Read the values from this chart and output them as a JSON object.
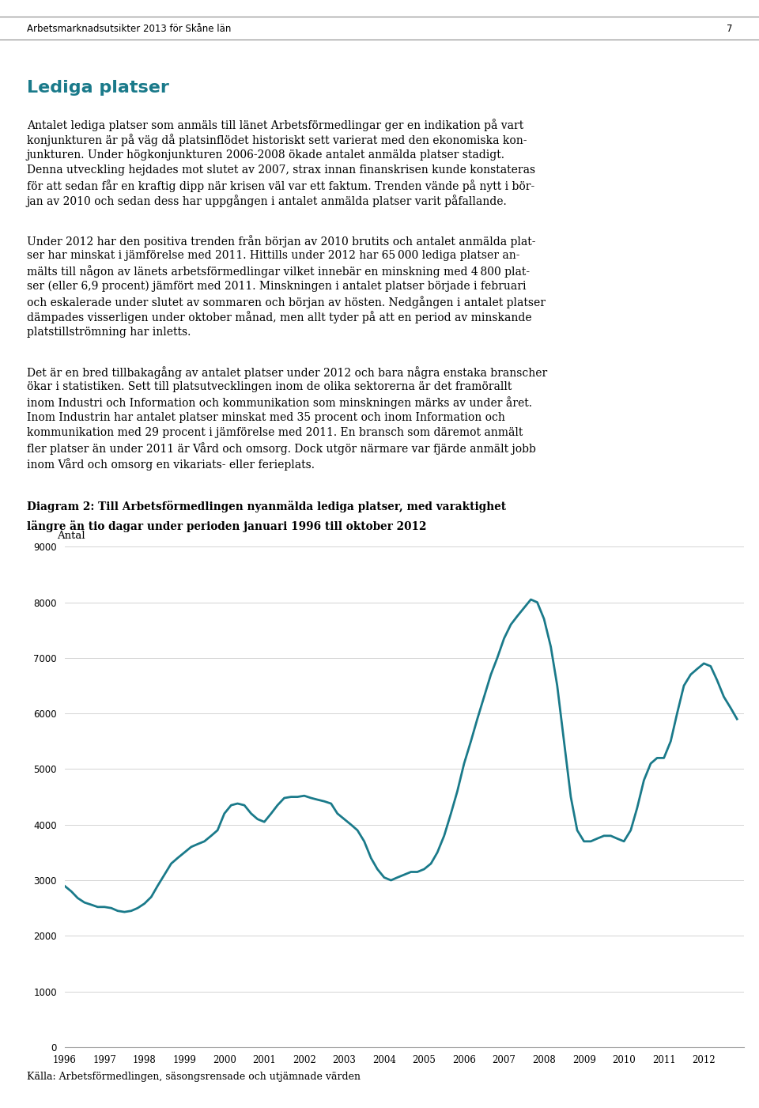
{
  "title_line1": "Diagram 2: Till Arbetsförmedlingen nyanmälda lediga platser, med varaktighet",
  "title_line2": "längre än tio dagar under perioden januari 1996 till oktober 2012",
  "ylabel": "Antal",
  "xlabel_source": "Källa: Arbetsförmedlingen, säsongsrensade och utjämnade värden",
  "page_header": "Arbetsmarknadsutsikter 2013 för Skåne län",
  "page_number": "7",
  "section_title": "Lediga platser",
  "para1": "Antalet lediga platser som anmäls till länet Arbetsförmedlingar ger en indikation på vart konjunkturen är på väg då platsinflödet historiskt sett varierat med den ekonomiska kon-junkturen. Under högkonjunkturen 2006-2008 ökade antalet anmälda platser stadigt. Denna utveckling hejdades mot slutet av 2007, strax innan finanskrisen kunde konstateras för att sedan får en kraftig dipp när krisen väl var ett faktum. Trenden vände på nytt i bör-jan av 2010 och sedan dess har uppgången i antalet anmälda platser varit påfallande.",
  "para2": "Under 2012 har den positiva trenden från början av 2010 brutits och antalet anmälda plat-ser har minskat i jämförelse med 2011. Hittills under 2012 har 65 000 lediga platser an-mälts till någon av länets arbetsförmedlingar vilket innebär en minskning med 4 800 plat-ser (eller 6,9 procent) jämfört med 2011. Minskningen i antalet platser började i februari och eskalerade under slutet av sommaren och början av hösten. Nedgången i antalet platser dämpades visserligen under oktober månad, men allt tyder på att en period av minskande platstillströmning har inletts.",
  "para3": "Det är en bred tillbakagång av antalet platser under 2012 och bara några enstaka branscher ökar i statistiken. Sett till platsutvecklingen inom de olika sektorerna är det framörallt inom Industri och Information och kommunikation som minskningen märks av under året. Inom Industrin har antalet platser minskat med 35 procent och inom Information och kommunikation med 29 procent i jämförelse med 2011. En bransch som däremot anmält fler platser än under 2011 är Vård och omsorg. Dock utgör närmare var fjärde anmält jobb inom Vård och omsorg en vikariats- eller ferieplats.",
  "line_color": "#1a7a8a",
  "line_width": 2.0,
  "ylim": [
    0,
    9000
  ],
  "yticks": [
    0,
    1000,
    2000,
    3000,
    4000,
    5000,
    6000,
    7000,
    8000,
    9000
  ],
  "x_labels": [
    "1996",
    "1997",
    "1998",
    "1999",
    "2000",
    "2001",
    "2002",
    "2003",
    "2004",
    "2005",
    "2006",
    "2007",
    "2008",
    "2009",
    "2010",
    "2011",
    "2012"
  ],
  "data_x": [
    1996.0,
    1996.17,
    1996.33,
    1996.5,
    1996.67,
    1996.83,
    1997.0,
    1997.17,
    1997.33,
    1997.5,
    1997.67,
    1997.83,
    1998.0,
    1998.17,
    1998.33,
    1998.5,
    1998.67,
    1998.83,
    1999.0,
    1999.17,
    1999.33,
    1999.5,
    1999.67,
    1999.83,
    2000.0,
    2000.17,
    2000.33,
    2000.5,
    2000.67,
    2000.83,
    2001.0,
    2001.17,
    2001.33,
    2001.5,
    2001.67,
    2001.83,
    2002.0,
    2002.17,
    2002.33,
    2002.5,
    2002.67,
    2002.83,
    2003.0,
    2003.17,
    2003.33,
    2003.5,
    2003.67,
    2003.83,
    2004.0,
    2004.17,
    2004.33,
    2004.5,
    2004.67,
    2004.83,
    2005.0,
    2005.17,
    2005.33,
    2005.5,
    2005.67,
    2005.83,
    2006.0,
    2006.17,
    2006.33,
    2006.5,
    2006.67,
    2006.83,
    2007.0,
    2007.17,
    2007.33,
    2007.5,
    2007.67,
    2007.83,
    2008.0,
    2008.17,
    2008.33,
    2008.5,
    2008.67,
    2008.83,
    2009.0,
    2009.17,
    2009.33,
    2009.5,
    2009.67,
    2009.83,
    2010.0,
    2010.17,
    2010.33,
    2010.5,
    2010.67,
    2010.83,
    2011.0,
    2011.17,
    2011.33,
    2011.5,
    2011.67,
    2011.83,
    2012.0,
    2012.17,
    2012.33,
    2012.5,
    2012.67,
    2012.83
  ],
  "data_y": [
    2900,
    2800,
    2680,
    2600,
    2560,
    2520,
    2520,
    2500,
    2450,
    2430,
    2450,
    2500,
    2580,
    2700,
    2900,
    3100,
    3300,
    3400,
    3500,
    3600,
    3650,
    3700,
    3800,
    3900,
    4200,
    4350,
    4380,
    4350,
    4200,
    4100,
    4050,
    4200,
    4350,
    4480,
    4500,
    4500,
    4520,
    4480,
    4450,
    4420,
    4380,
    4200,
    4100,
    4000,
    3900,
    3700,
    3400,
    3200,
    3050,
    3000,
    3050,
    3100,
    3150,
    3150,
    3200,
    3300,
    3500,
    3800,
    4200,
    4600,
    5100,
    5500,
    5900,
    6300,
    6700,
    7000,
    7350,
    7600,
    7750,
    7900,
    8050,
    8000,
    7700,
    7200,
    6500,
    5500,
    4500,
    3900,
    3700,
    3700,
    3750,
    3800,
    3800,
    3750,
    3700,
    3900,
    4300,
    4800,
    5100,
    5200,
    5200,
    5500,
    6000,
    6500,
    6700,
    6800,
    6900,
    6850,
    6600,
    6300,
    6100,
    5900
  ],
  "background_color": "#ffffff",
  "grid_color": "#cccccc",
  "section_title_color": "#1a7a8a"
}
